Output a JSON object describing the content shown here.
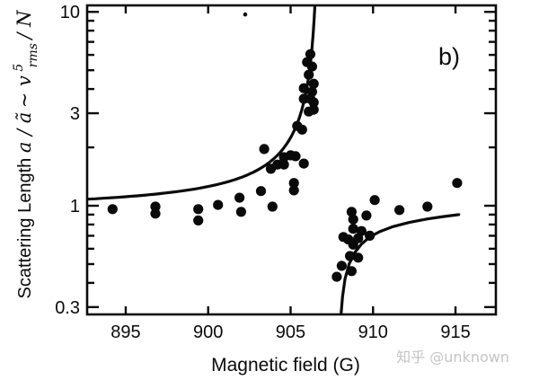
{
  "figure": {
    "panel_label": "b)",
    "watermark": "知乎 @unknown"
  },
  "chart_data": {
    "type": "scatter",
    "title": "",
    "xlabel": "Magnetic field (G)",
    "ylabel": "Scattering Length a/ã ~ v⁵rms / N",
    "ylabel_parts": {
      "prefix": "Scattering Length ",
      "ratio": "a / ã",
      "tilde": " ~ ",
      "vsym": "v",
      "sup": "5",
      "sub": "rms",
      "suffix": " / N"
    },
    "xlim": [
      892.66,
      917.45
    ],
    "ylim": [
      0.275,
      10.8
    ],
    "yscale": "log",
    "x_ticks": [
      895,
      900,
      905,
      910,
      915
    ],
    "y_ticks_major": [
      10,
      3,
      1,
      0.3
    ],
    "y_ticks_major_labels": [
      "10",
      "3",
      "1",
      "0.3"
    ],
    "y_ticks_minor": [
      9,
      8,
      7,
      6,
      5,
      4,
      2,
      0.9,
      0.8,
      0.7,
      0.6,
      0.5,
      0.4
    ],
    "grid": false,
    "legend": "none",
    "colors": {
      "data": "#0a0a0a",
      "curve": "#0a0a0a",
      "watermark": "#c5c5c5"
    },
    "points": [
      [
        894.2,
        0.96
      ],
      [
        896.8,
        0.99
      ],
      [
        896.8,
        0.91
      ],
      [
        899.4,
        0.96
      ],
      [
        899.4,
        0.84
      ],
      [
        900.6,
        1.01
      ],
      [
        901.9,
        1.1
      ],
      [
        902.0,
        0.93
      ],
      [
        903.2,
        1.19
      ],
      [
        903.9,
        0.99
      ],
      [
        903.4,
        1.96
      ],
      [
        903.8,
        1.55
      ],
      [
        904.6,
        1.78
      ],
      [
        905.0,
        1.82
      ],
      [
        905.3,
        1.8
      ],
      [
        904.2,
        1.63
      ],
      [
        904.6,
        1.63
      ],
      [
        905.8,
        1.65
      ],
      [
        905.2,
        1.31
      ],
      [
        905.2,
        1.2
      ],
      [
        906.2,
        6.05
      ],
      [
        906.0,
        5.5
      ],
      [
        906.3,
        5.22
      ],
      [
        906.1,
        4.74
      ],
      [
        906.4,
        4.26
      ],
      [
        905.8,
        4.04
      ],
      [
        906.3,
        3.87
      ],
      [
        905.8,
        3.56
      ],
      [
        906.2,
        3.56
      ],
      [
        906.4,
        3.41
      ],
      [
        906.4,
        3.13
      ],
      [
        906.1,
        3.06
      ],
      [
        905.4,
        2.58
      ],
      [
        905.7,
        2.47
      ],
      [
        910.1,
        1.07
      ],
      [
        911.6,
        0.95
      ],
      [
        913.3,
        0.99
      ],
      [
        915.1,
        1.31
      ],
      [
        908.7,
        0.93
      ],
      [
        908.8,
        0.85
      ],
      [
        909.6,
        0.89
      ],
      [
        908.8,
        0.76
      ],
      [
        909.3,
        0.74
      ],
      [
        908.2,
        0.69
      ],
      [
        908.5,
        0.67
      ],
      [
        909.1,
        0.68
      ],
      [
        909.8,
        0.7
      ],
      [
        908.8,
        0.63
      ],
      [
        908.6,
        0.55
      ],
      [
        909.1,
        0.54
      ],
      [
        908.1,
        0.49
      ],
      [
        908.7,
        0.46
      ],
      [
        907.8,
        0.43
      ]
    ],
    "stray_dot": [
      902.25,
      9.7
    ],
    "curves": {
      "left_branch": {
        "model": "v(B) = a_bg * (1 + delta / (B0 - B))",
        "a_bg": 0.92,
        "delta": 2.45,
        "B0": 906.7,
        "B_start": 892.66,
        "B_end": 906.49
      },
      "right_branch": {
        "polyline": [
          [
            908.05,
            0.27
          ],
          [
            908.15,
            0.34
          ],
          [
            908.3,
            0.42
          ],
          [
            908.55,
            0.5
          ],
          [
            908.9,
            0.575
          ],
          [
            909.3,
            0.635
          ],
          [
            909.8,
            0.69
          ],
          [
            910.4,
            0.735
          ],
          [
            911.2,
            0.78
          ],
          [
            912.2,
            0.82
          ],
          [
            913.3,
            0.855
          ],
          [
            914.3,
            0.88
          ],
          [
            915.2,
            0.9
          ]
        ]
      }
    }
  }
}
